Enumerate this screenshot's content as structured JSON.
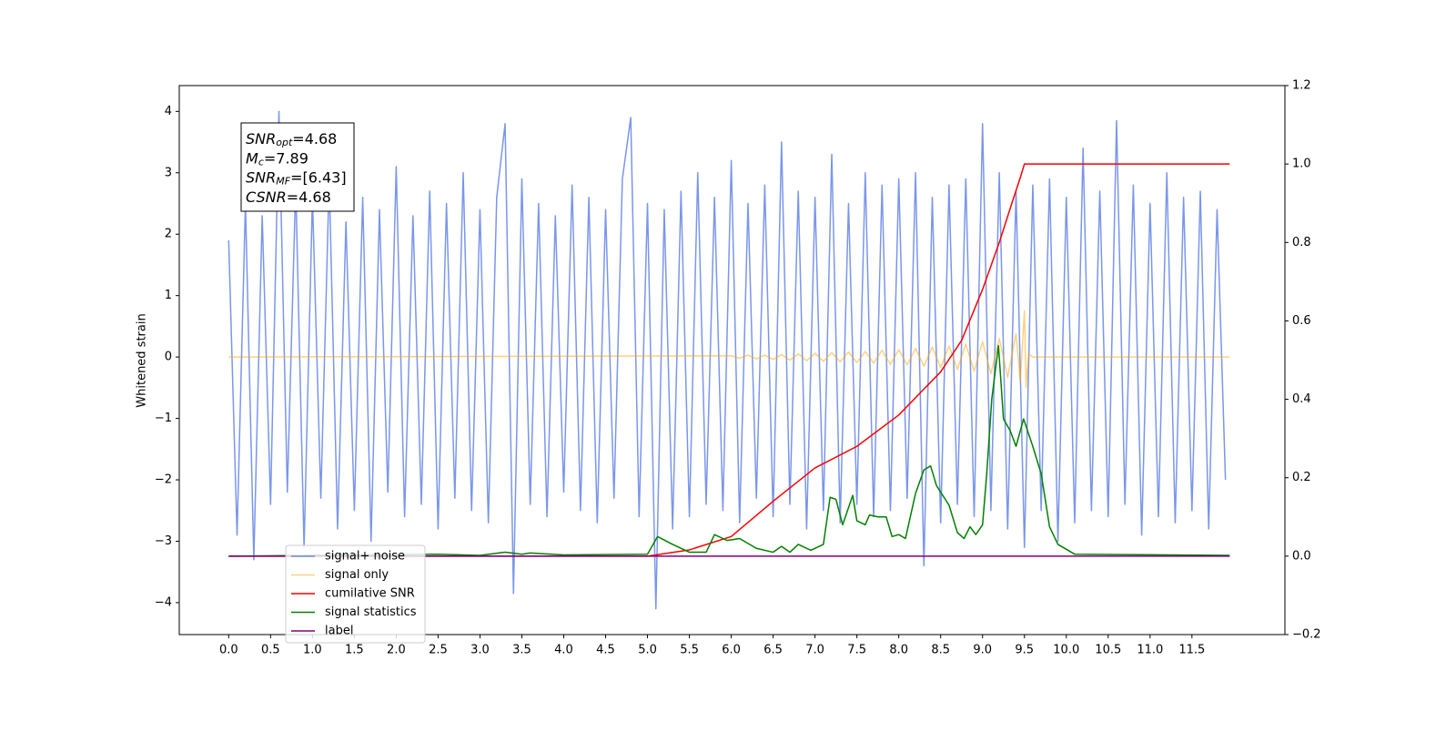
{
  "chart_data": {
    "type": "line",
    "ylabel": "Whitened strain",
    "xlim": [
      -0.59,
      12.61
    ],
    "ylim": [
      -4.52,
      4.42
    ],
    "y2lim": [
      -0.2,
      1.2
    ],
    "xticks": [
      {
        "value": 0,
        "label": "0.0"
      },
      0.5,
      {
        "value": 1,
        "label": "1.0"
      },
      1.5,
      {
        "value": 2,
        "label": "2.0"
      },
      2.5,
      {
        "value": 3,
        "label": "3.0"
      },
      3.5,
      {
        "value": 4,
        "label": "4.0"
      },
      4.5,
      {
        "value": 5,
        "label": "5.0"
      },
      5.5,
      {
        "value": 6,
        "label": "6.0"
      },
      6.5,
      {
        "value": 7,
        "label": "7.0"
      },
      7.5,
      {
        "value": 8,
        "label": "8.0"
      },
      8.5,
      {
        "value": 9,
        "label": "9.0"
      },
      9.5,
      {
        "value": 10,
        "label": "10.0"
      },
      10.5,
      {
        "value": 11,
        "label": "11.0"
      },
      11.5
    ],
    "yticks": [
      {
        "value": -4,
        "label": "−4"
      },
      {
        "value": -3,
        "label": "−3"
      },
      {
        "value": -2,
        "label": "−2"
      },
      {
        "value": -1,
        "label": "−1"
      },
      0,
      1,
      2,
      3,
      4
    ],
    "y2ticks": [
      {
        "value": -0.2,
        "label": "−0.2"
      },
      {
        "value": 0,
        "label": "0.0"
      },
      0.2,
      0.4,
      0.6,
      0.8,
      {
        "value": 1,
        "label": "1.0"
      },
      1.2
    ],
    "legend": "lower left",
    "annotation": [
      {
        "text": "SNR",
        "sub": "opt",
        "rest": "=4.68"
      },
      {
        "text": "M",
        "sub": "c",
        "rest": "=7.89"
      },
      {
        "text": "SNR",
        "sub": "MF",
        "rest": "=[6.43]"
      },
      {
        "text": "CSNR",
        "rest": "=4.68"
      }
    ],
    "series": [
      {
        "name": "signal+ noise",
        "color": "#4169e1",
        "alpha": 0.7,
        "x": [
          0.0,
          0.1,
          0.2,
          0.3,
          0.4,
          0.5,
          0.6,
          0.7,
          0.8,
          0.9,
          1.0,
          1.1,
          1.2,
          1.3,
          1.4,
          1.5,
          1.6,
          1.7,
          1.8,
          1.9,
          2.0,
          2.1,
          2.2,
          2.3,
          2.4,
          2.5,
          2.6,
          2.7,
          2.8,
          2.9,
          3.0,
          3.1,
          3.2,
          3.3,
          3.4,
          3.5,
          3.6,
          3.7,
          3.8,
          3.9,
          4.0,
          4.1,
          4.2,
          4.3,
          4.4,
          4.5,
          4.6,
          4.7,
          4.8,
          4.9,
          5.0,
          5.1,
          5.2,
          5.3,
          5.4,
          5.5,
          5.6,
          5.7,
          5.8,
          5.9,
          6.0,
          6.1,
          6.2,
          6.3,
          6.4,
          6.5,
          6.6,
          6.7,
          6.8,
          6.9,
          7.0,
          7.1,
          7.2,
          7.3,
          7.4,
          7.5,
          7.6,
          7.7,
          7.8,
          7.9,
          8.0,
          8.1,
          8.2,
          8.3,
          8.4,
          8.5,
          8.6,
          8.7,
          8.8,
          8.9,
          9.0,
          9.1,
          9.2,
          9.3,
          9.4,
          9.5,
          9.6,
          9.7,
          9.8,
          9.9,
          10.0,
          10.1,
          10.2,
          10.3,
          10.4,
          10.5,
          10.6,
          10.7,
          10.8,
          10.9,
          11.0,
          11.1,
          11.2,
          11.3,
          11.4,
          11.5,
          11.6,
          11.7,
          11.8,
          11.9
        ],
        "values": [
          1.9,
          -2.9,
          2.5,
          -3.3,
          2.3,
          -2.4,
          4.0,
          -2.2,
          2.8,
          -3.1,
          2.6,
          -2.3,
          2.9,
          -2.8,
          2.2,
          -2.5,
          2.6,
          -3.0,
          2.4,
          -2.2,
          3.1,
          -2.6,
          2.3,
          -2.4,
          2.7,
          -2.8,
          2.5,
          -2.3,
          3.0,
          -2.5,
          2.4,
          -2.7,
          2.6,
          3.8,
          -3.85,
          2.9,
          -2.4,
          2.5,
          -2.6,
          2.3,
          -2.2,
          2.8,
          -2.5,
          2.6,
          -2.7,
          2.4,
          -2.3,
          2.9,
          3.9,
          -2.6,
          2.5,
          -4.1,
          2.4,
          -2.8,
          2.7,
          -2.6,
          3.0,
          -2.4,
          2.6,
          -2.5,
          3.2,
          -2.7,
          2.5,
          -2.3,
          2.8,
          -2.6,
          3.5,
          -2.4,
          2.7,
          -2.8,
          2.6,
          -2.5,
          3.3,
          -2.7,
          2.5,
          -2.4,
          3.0,
          -2.6,
          2.8,
          -2.5,
          2.9,
          -2.3,
          3.0,
          -3.4,
          2.6,
          -2.7,
          2.8,
          -2.4,
          2.9,
          -2.6,
          3.8,
          -2.5,
          3.0,
          -2.8,
          2.7,
          -3.1,
          2.8,
          -2.5,
          2.9,
          -3.0,
          2.6,
          -2.7,
          3.4,
          -2.5,
          2.7,
          -2.6,
          3.85,
          -2.4,
          2.8,
          -2.9,
          2.5,
          -2.6,
          3.0,
          -2.7,
          2.6,
          -2.5,
          2.7,
          -2.8,
          2.4,
          -2.0
        ]
      },
      {
        "name": "signal only",
        "color": "#ffa500",
        "alpha": 0.5,
        "x": [
          0.0,
          6.0,
          6.1,
          6.2,
          6.3,
          6.4,
          6.5,
          6.6,
          6.7,
          6.8,
          6.9,
          7.0,
          7.1,
          7.2,
          7.3,
          7.4,
          7.5,
          7.6,
          7.7,
          7.8,
          7.9,
          8.0,
          8.1,
          8.2,
          8.3,
          8.4,
          8.5,
          8.6,
          8.7,
          8.8,
          8.9,
          9.0,
          9.1,
          9.2,
          9.3,
          9.4,
          9.45,
          9.5,
          9.52,
          9.55,
          9.6,
          11.95
        ],
        "values": [
          0,
          0.02,
          -0.02,
          0.03,
          -0.03,
          0.03,
          -0.04,
          0.04,
          -0.05,
          0.05,
          -0.06,
          0.06,
          -0.07,
          0.07,
          -0.08,
          0.08,
          -0.09,
          0.09,
          -0.1,
          0.11,
          -0.12,
          0.12,
          -0.13,
          0.14,
          -0.15,
          0.16,
          -0.17,
          0.18,
          -0.2,
          0.21,
          -0.23,
          0.25,
          -0.27,
          0.3,
          -0.33,
          0.38,
          -0.4,
          0.75,
          -0.5,
          0.05,
          0,
          0
        ]
      },
      {
        "name": "cumilative SNR",
        "color": "#ff0000",
        "alpha": 1,
        "axis": "y2",
        "x": [
          0,
          5.0,
          5.5,
          6.0,
          6.5,
          7.0,
          7.5,
          8.0,
          8.5,
          8.75,
          9.0,
          9.2,
          9.35,
          9.45,
          9.5,
          11.95
        ],
        "values": [
          0,
          0,
          0.016,
          0.05,
          0.14,
          0.225,
          0.28,
          0.36,
          0.47,
          0.55,
          0.68,
          0.8,
          0.9,
          0.965,
          1.0,
          1.0
        ]
      },
      {
        "name": "signal statistics",
        "color": "#008000",
        "alpha": 1,
        "axis": "y2",
        "x": [
          0,
          2.5,
          3.0,
          3.3,
          3.5,
          3.6,
          4.0,
          5.0,
          5.12,
          5.3,
          5.5,
          5.7,
          5.8,
          5.95,
          6.1,
          6.3,
          6.5,
          6.6,
          6.7,
          6.8,
          6.95,
          7.1,
          7.18,
          7.25,
          7.33,
          7.45,
          7.5,
          7.6,
          7.65,
          7.75,
          7.85,
          7.92,
          8.0,
          8.08,
          8.2,
          8.3,
          8.38,
          8.45,
          8.6,
          8.7,
          8.78,
          8.85,
          8.92,
          9.0,
          9.05,
          9.11,
          9.19,
          9.25,
          9.33,
          9.4,
          9.49,
          9.6,
          9.7,
          9.8,
          9.9,
          10.1,
          11.95
        ],
        "values": [
          0,
          0.005,
          0.002,
          0.01,
          0.005,
          0.008,
          0.003,
          0.005,
          0.05,
          0.03,
          0.01,
          0.01,
          0.055,
          0.04,
          0.045,
          0.02,
          0.01,
          0.025,
          0.01,
          0.03,
          0.015,
          0.03,
          0.15,
          0.145,
          0.08,
          0.155,
          0.09,
          0.08,
          0.105,
          0.1,
          0.1,
          0.05,
          0.055,
          0.045,
          0.16,
          0.22,
          0.23,
          0.18,
          0.13,
          0.06,
          0.045,
          0.075,
          0.055,
          0.08,
          0.21,
          0.4,
          0.537,
          0.35,
          0.32,
          0.28,
          0.35,
          0.28,
          0.21,
          0.075,
          0.03,
          0.005,
          0.002
        ]
      },
      {
        "name": "label",
        "color": "#800080",
        "alpha": 1,
        "axis": "y2",
        "x": [
          0,
          11.95
        ],
        "values": [
          0,
          0
        ]
      }
    ]
  }
}
